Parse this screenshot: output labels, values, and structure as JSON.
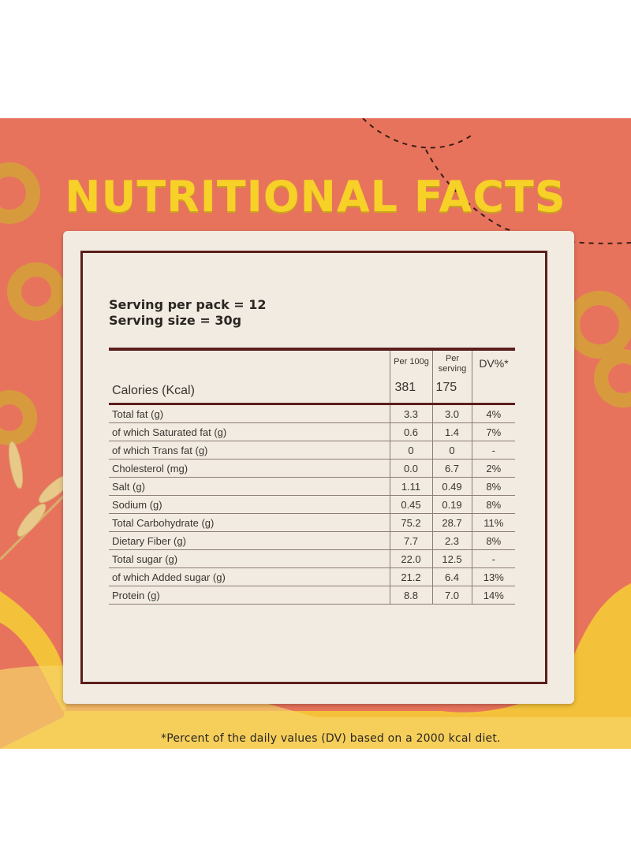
{
  "title": "NUTRITIONAL FACTS",
  "serving": {
    "per_pack": "Serving per pack = 12",
    "size": "Serving size = 30g"
  },
  "table": {
    "headers": [
      "Per 100g",
      "Per serving",
      "DV%*"
    ],
    "header_per_serving_line1": "Per",
    "header_per_serving_line2": "serving",
    "calories": {
      "label": "Calories (Kcal)",
      "per100": "381",
      "perserving": "175",
      "dv": ""
    },
    "rows": [
      {
        "label": "Total fat (g)",
        "per100": "3.3",
        "perserving": "3.0",
        "dv": "4%"
      },
      {
        "label": "of which Saturated fat (g)",
        "per100": "0.6",
        "perserving": "1.4",
        "dv": "7%"
      },
      {
        "label": "of which Trans fat (g)",
        "per100": "0",
        "perserving": "0",
        "dv": "-"
      },
      {
        "label": "Cholesterol (mg)",
        "per100": "0.0",
        "perserving": "6.7",
        "dv": "2%"
      },
      {
        "label": "Salt (g)",
        "per100": "1.11",
        "perserving": "0.49",
        "dv": "8%"
      },
      {
        "label": "Sodium (g)",
        "per100": "0.45",
        "perserving": "0.19",
        "dv": "8%"
      },
      {
        "label": "Total Carbohydrate (g)",
        "per100": "75.2",
        "perserving": "28.7",
        "dv": "11%"
      },
      {
        "label": "Dietary Fiber (g)",
        "per100": "7.7",
        "perserving": "2.3",
        "dv": "8%"
      },
      {
        "label": "Total sugar (g)",
        "per100": "22.0",
        "perserving": "12.5",
        "dv": "-"
      },
      {
        "label": "of which Added sugar (g)",
        "per100": "21.2",
        "perserving": "6.4",
        "dv": "13%"
      },
      {
        "label": "Protein (g)",
        "per100": "8.8",
        "perserving": "7.0",
        "dv": "14%"
      }
    ]
  },
  "footnote": "*Percent of the daily values (DV) based on a 2000 kcal diet.",
  "colors": {
    "background": "#e8735c",
    "title": "#f7d128",
    "card": "#f2ebe1",
    "frame": "#5b1f1c",
    "honey": "#f4c23a"
  }
}
